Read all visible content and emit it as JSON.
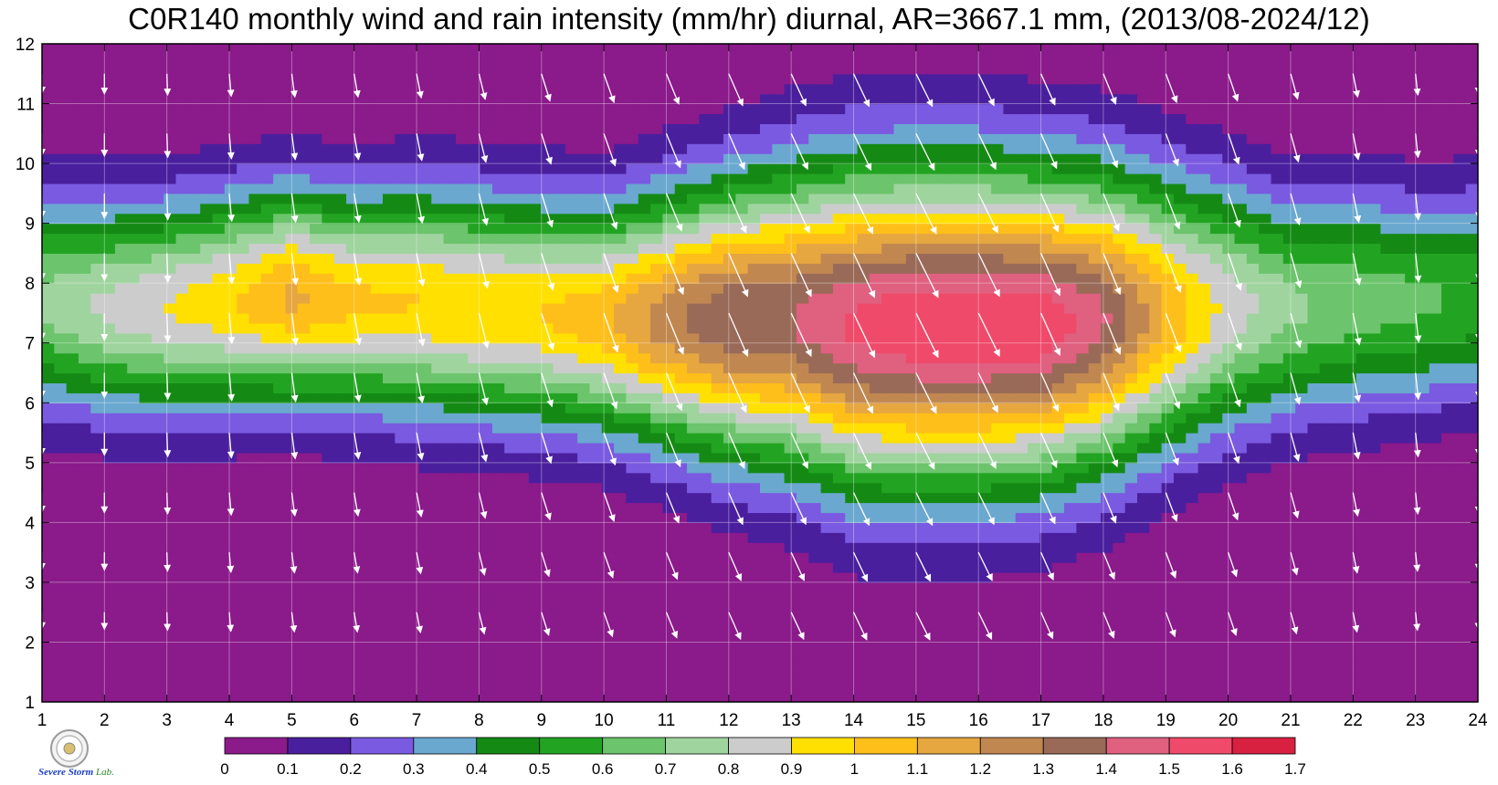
{
  "title": "C0R140 monthly wind and rain intensity (mm/hr) diurnal, AR=3667.1 mm, (2013/08-2024/12)",
  "logo": {
    "name": "severe-storm-lab-logo",
    "text_severe": "Severe",
    "text_storm": "Storm",
    "text_lab": "Lab."
  },
  "chart_data": {
    "type": "heatmap",
    "x_ticks": [
      "1",
      "2",
      "3",
      "4",
      "5",
      "6",
      "7",
      "8",
      "9",
      "10",
      "11",
      "12",
      "13",
      "14",
      "15",
      "16",
      "17",
      "18",
      "19",
      "20",
      "21",
      "22",
      "23",
      "24"
    ],
    "y_ticks": [
      "1",
      "2",
      "3",
      "4",
      "5",
      "6",
      "7",
      "8",
      "9",
      "10",
      "11",
      "12"
    ],
    "xlim": [
      1,
      24
    ],
    "ylim": [
      1,
      12
    ],
    "grid": true,
    "levels": [
      0,
      0.1,
      0.2,
      0.3,
      0.4,
      0.5,
      0.6,
      0.7,
      0.8,
      0.9,
      1,
      1.1,
      1.2,
      1.3,
      1.4,
      1.5,
      1.6,
      1.7
    ],
    "level_labels": [
      "0",
      "0.1",
      "0.2",
      "0.3",
      "0.4",
      "0.5",
      "0.6",
      "0.7",
      "0.8",
      "0.9",
      "1",
      "1.1",
      "1.2",
      "1.3",
      "1.4",
      "1.5",
      "1.6",
      "1.7"
    ],
    "colors": [
      "#8b1a8b",
      "#4a1f9e",
      "#7a5ae0",
      "#6aa8d0",
      "#148a14",
      "#22a422",
      "#6cc46c",
      "#9fd49f",
      "#cccccc",
      "#ffe000",
      "#ffbf1a",
      "#e6a640",
      "#c08850",
      "#9a6a58",
      "#e06080",
      "#f04a6a",
      "#d82040"
    ],
    "x_hours": [
      1,
      2,
      3,
      4,
      5,
      6,
      7,
      8,
      9,
      10,
      11,
      12,
      13,
      14,
      15,
      16,
      17,
      18,
      19,
      20,
      21,
      22,
      23,
      24
    ],
    "ridge_center_month": [
      7.7,
      7.6,
      7.6,
      7.7,
      7.8,
      7.7,
      7.7,
      7.6,
      7.5,
      7.4,
      7.4,
      7.4,
      7.4,
      7.3,
      7.3,
      7.3,
      7.3,
      7.4,
      7.5,
      7.6,
      7.6,
      7.7,
      7.7,
      7.8
    ],
    "ridge_peak": [
      0.72,
      0.82,
      0.9,
      0.98,
      1.12,
      1.02,
      1.0,
      1.0,
      1.0,
      1.08,
      1.26,
      1.38,
      1.4,
      1.52,
      1.58,
      1.58,
      1.58,
      1.42,
      1.1,
      0.86,
      0.72,
      0.66,
      0.62,
      0.58
    ],
    "ridge_half_width": [
      1.9,
      1.9,
      1.9,
      1.9,
      1.9,
      1.9,
      2.0,
      2.0,
      2.0,
      2.0,
      2.2,
      2.4,
      2.6,
      2.8,
      2.8,
      2.8,
      2.7,
      2.6,
      2.4,
      2.2,
      2.0,
      2.0,
      1.9,
      1.9
    ],
    "wind_u": [
      0.0,
      0.0,
      0.02,
      0.05,
      0.08,
      0.1,
      0.12,
      0.16,
      0.22,
      0.26,
      0.32,
      0.36,
      0.38,
      0.4,
      0.42,
      0.4,
      0.36,
      0.32,
      0.28,
      0.24,
      0.18,
      0.12,
      0.06,
      0.02
    ],
    "wind_v": [
      -0.5,
      -0.52,
      -0.55,
      -0.58,
      -0.6,
      -0.6,
      -0.62,
      -0.66,
      -0.7,
      -0.74,
      -0.78,
      -0.82,
      -0.82,
      -0.84,
      -0.84,
      -0.82,
      -0.8,
      -0.78,
      -0.74,
      -0.7,
      -0.65,
      -0.6,
      -0.55,
      -0.52
    ]
  }
}
